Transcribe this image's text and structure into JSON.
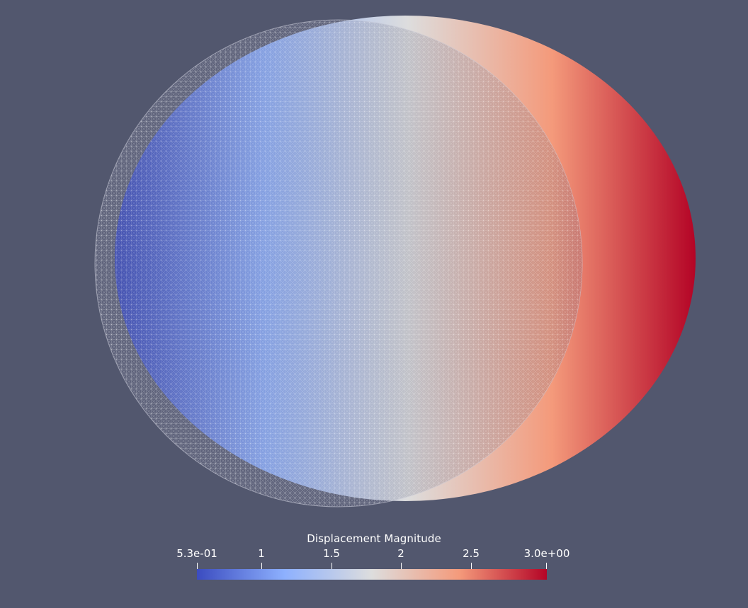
{
  "visualization": {
    "colormap": "Cool to Warm",
    "colormap_stops": [
      "#3b4cc0",
      "#8db0fe",
      "#dddddd",
      "#f49a7b",
      "#b40426"
    ],
    "background_color": "#52576e",
    "undeformed_mesh": {
      "style": "wireframe-surface",
      "color": "#9aa0b5"
    },
    "deformed_body": {
      "field": "Displacement Magnitude",
      "gradient_direction": "left-to-right"
    }
  },
  "colorbar": {
    "title": "Displacement Magnitude",
    "range": [
      0.53,
      3.0
    ],
    "tick_labels": [
      "5.3e-01",
      "1",
      "1.5",
      "2",
      "2.5",
      "3.0e+00"
    ],
    "tick_values": [
      0.53,
      1,
      1.5,
      2,
      2.5,
      3.0
    ]
  }
}
